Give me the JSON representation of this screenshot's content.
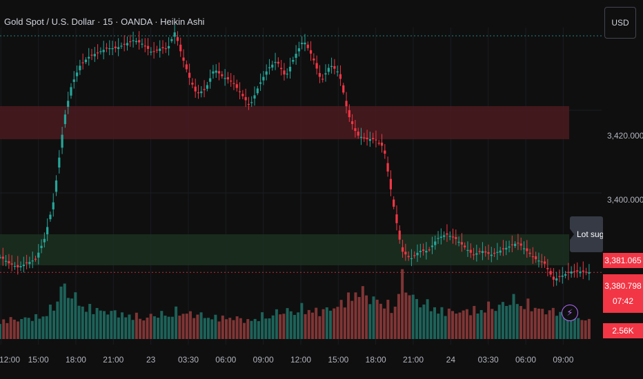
{
  "header": {
    "title": "Gold Spot / U.S. Dollar · 15 · OANDA · Heikin Ashi",
    "currency": "USD"
  },
  "price_axis": {
    "ticks": [
      "3,420.000",
      "3,400.000"
    ],
    "last_price": "3,381.065",
    "bid_price": "3,380.798",
    "countdown": "07:42",
    "volume_label": "2.56K"
  },
  "time_axis": {
    "ticks": [
      "12:00",
      "15:00",
      "18:00",
      "21:00",
      "23",
      "03:30",
      "06:00",
      "09:00",
      "12:00",
      "15:00",
      "18:00",
      "21:00",
      "24",
      "03:30",
      "06:00",
      "09:00"
    ]
  },
  "tooltip": {
    "text": "Lot sugge"
  },
  "icons": {
    "alert": "lightning-bolt-icon"
  },
  "colors": {
    "up": "#26a69a",
    "down": "#f23645",
    "supply_zone": "#4a1a1f",
    "demand_zone": "#1b3020",
    "dotted_top": "#26a69a",
    "dotted_price": "#f23645"
  },
  "chart_data": {
    "type": "candlestick",
    "x": [
      "12:00",
      "15:00",
      "18:00",
      "21:00",
      "23",
      "03:30",
      "06:00",
      "09:00",
      "12:00",
      "15:00",
      "18:00",
      "21:00",
      "24",
      "03:30",
      "06:00",
      "09:00"
    ],
    "ylim": [
      3375,
      3440
    ],
    "close_path": [
      [
        0,
        3384.5
      ],
      [
        0.2,
        3384
      ],
      [
        0.5,
        3383
      ],
      [
        1,
        3382
      ],
      [
        1.5,
        3383
      ],
      [
        2,
        3384
      ],
      [
        2.5,
        3389
      ],
      [
        3,
        3398
      ],
      [
        3.3,
        3408
      ],
      [
        3.6,
        3418
      ],
      [
        4,
        3426
      ],
      [
        4.5,
        3431
      ],
      [
        5,
        3433
      ],
      [
        5.5,
        3434
      ],
      [
        6,
        3435
      ],
      [
        6.5,
        3435
      ],
      [
        7,
        3436
      ],
      [
        7.5,
        3437
      ],
      [
        8,
        3436
      ],
      [
        8.5,
        3434
      ],
      [
        9,
        3435
      ],
      [
        9.4,
        3435
      ],
      [
        9.8,
        3439
      ],
      [
        10.2,
        3433
      ],
      [
        10.6,
        3428
      ],
      [
        11,
        3424
      ],
      [
        11.5,
        3425
      ],
      [
        12,
        3430
      ],
      [
        12.5,
        3428
      ],
      [
        13,
        3427
      ],
      [
        13.5,
        3424
      ],
      [
        14,
        3421
      ],
      [
        14.5,
        3426
      ],
      [
        15,
        3430
      ],
      [
        15.5,
        3432
      ],
      [
        16,
        3428
      ],
      [
        16.5,
        3433
      ],
      [
        17,
        3437
      ],
      [
        17.5,
        3433
      ],
      [
        18,
        3427
      ],
      [
        18.5,
        3431
      ],
      [
        19,
        3429
      ],
      [
        19.5,
        3419
      ],
      [
        20,
        3414
      ],
      [
        20.5,
        3413
      ],
      [
        21,
        3413
      ],
      [
        21.5,
        3411
      ],
      [
        22,
        3398
      ],
      [
        22.5,
        3386
      ],
      [
        23,
        3384
      ],
      [
        23.5,
        3386
      ],
      [
        24,
        3386
      ],
      [
        24.5,
        3389
      ],
      [
        25,
        3390
      ],
      [
        25.5,
        3389
      ],
      [
        26,
        3387
      ],
      [
        26.5,
        3385
      ],
      [
        27,
        3386
      ],
      [
        27.5,
        3385
      ],
      [
        28,
        3386
      ],
      [
        28.5,
        3387
      ],
      [
        29,
        3388
      ],
      [
        29.5,
        3386
      ],
      [
        30,
        3384
      ],
      [
        30.5,
        3383
      ],
      [
        31,
        3379
      ],
      [
        31.5,
        3380
      ],
      [
        32,
        3381
      ],
      [
        32.5,
        3381
      ],
      [
        33,
        3380.8
      ]
    ],
    "volume_path": [
      [
        0,
        0.3
      ],
      [
        2,
        0.35
      ],
      [
        3,
        0.5
      ],
      [
        3.5,
        0.9
      ],
      [
        4,
        0.7
      ],
      [
        5,
        0.5
      ],
      [
        6,
        0.45
      ],
      [
        7,
        0.4
      ],
      [
        8,
        0.35
      ],
      [
        9,
        0.4
      ],
      [
        10,
        0.45
      ],
      [
        11,
        0.4
      ],
      [
        12,
        0.35
      ],
      [
        13,
        0.35
      ],
      [
        14,
        0.3
      ],
      [
        15,
        0.4
      ],
      [
        16,
        0.45
      ],
      [
        17,
        0.5
      ],
      [
        18,
        0.45
      ],
      [
        19,
        0.55
      ],
      [
        20,
        0.8
      ],
      [
        21,
        0.65
      ],
      [
        22,
        0.5
      ],
      [
        22.5,
        1
      ],
      [
        23,
        0.7
      ],
      [
        24,
        0.55
      ],
      [
        25,
        0.45
      ],
      [
        26,
        0.45
      ],
      [
        27,
        0.5
      ],
      [
        28,
        0.55
      ],
      [
        29,
        0.65
      ],
      [
        30,
        0.5
      ],
      [
        31,
        0.45
      ],
      [
        32,
        0.4
      ],
      [
        33,
        0.3
      ]
    ],
    "zones": [
      {
        "kind": "supply",
        "from": 3413,
        "to": 3421
      },
      {
        "kind": "demand",
        "from": 3382.5,
        "to": 3390
      }
    ],
    "reference_lines": [
      {
        "kind": "session_high",
        "price": 3438
      },
      {
        "kind": "last_price",
        "price": 3380.8
      }
    ]
  }
}
